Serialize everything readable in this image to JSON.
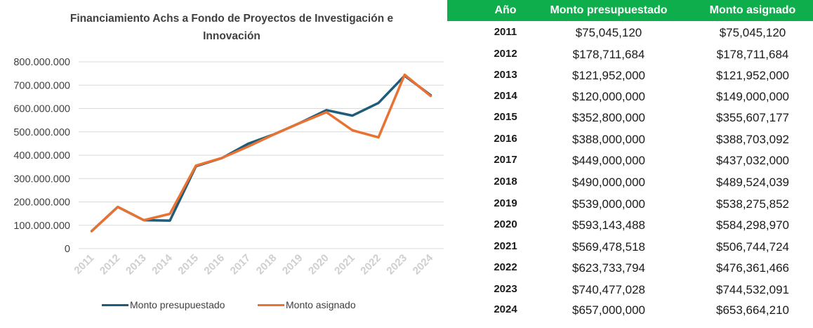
{
  "chart_data": {
    "type": "line",
    "title": "Financiamiento Achs a Fondo de Proyectos de Investigación e Innovación",
    "title_lines": [
      "Financiamiento Achs a Fondo de Proyectos de Investigación e",
      "Innovación"
    ],
    "categories": [
      "2011",
      "2012",
      "2013",
      "2014",
      "2015",
      "2016",
      "2017",
      "2018",
      "2019",
      "2020",
      "2021",
      "2022",
      "2023",
      "2024"
    ],
    "series": [
      {
        "name": "Monto presupuestado",
        "color": "#1f5c7a",
        "values": [
          75045120,
          178711684,
          121952000,
          120000000,
          352800000,
          388000000,
          449000000,
          490000000,
          539000000,
          593143488,
          569478518,
          623733794,
          740477028,
          657000000
        ]
      },
      {
        "name": "Monto asignado",
        "color": "#e97132",
        "values": [
          75045120,
          178711684,
          121952000,
          149000000,
          355607177,
          388703092,
          437032000,
          489524039,
          538275852,
          584298970,
          506744724,
          476361466,
          744532091,
          653664210
        ]
      }
    ],
    "ylim": [
      0,
      800000000
    ],
    "yticks": [
      0,
      100000000,
      200000000,
      300000000,
      400000000,
      500000000,
      600000000,
      700000000,
      800000000
    ],
    "ytick_labels": [
      "0",
      "100.000.000",
      "200.000.000",
      "300.000.000",
      "400.000.000",
      "500.000.000",
      "600.000.000",
      "700.000.000",
      "800.000.000"
    ],
    "xlabel": "",
    "ylabel": "",
    "grid": true,
    "legend": "bottom"
  },
  "table": {
    "headers": [
      "Año",
      "Monto presupuestado",
      "Monto asignado"
    ],
    "rows": [
      [
        "2011",
        "$75,045,120",
        "$75,045,120"
      ],
      [
        "2012",
        "$178,711,684",
        "$178,711,684"
      ],
      [
        "2013",
        "$121,952,000",
        "$121,952,000"
      ],
      [
        "2014",
        "$120,000,000",
        "$149,000,000"
      ],
      [
        "2015",
        "$352,800,000",
        "$355,607,177"
      ],
      [
        "2016",
        "$388,000,000",
        "$388,703,092"
      ],
      [
        "2017",
        "$449,000,000",
        "$437,032,000"
      ],
      [
        "2018",
        "$490,000,000",
        "$489,524,039"
      ],
      [
        "2019",
        "$539,000,000",
        "$538,275,852"
      ],
      [
        "2020",
        "$593,143,488",
        "$584,298,970"
      ],
      [
        "2021",
        "$569,478,518",
        "$506,744,724"
      ],
      [
        "2022",
        "$623,733,794",
        "$476,361,466"
      ],
      [
        "2023",
        "$740,477,028",
        "$744,532,091"
      ],
      [
        "2024",
        "$657,000,000",
        "$653,664,210"
      ]
    ]
  }
}
